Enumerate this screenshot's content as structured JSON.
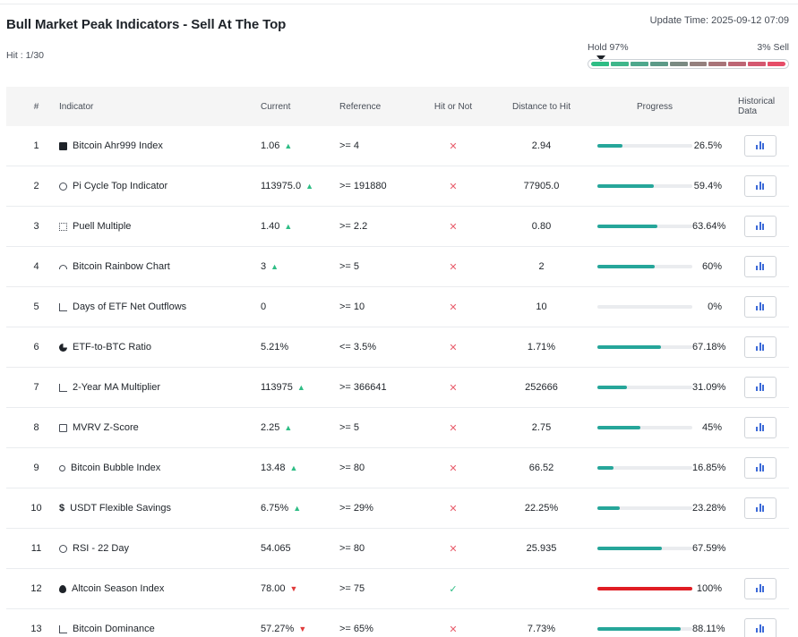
{
  "header": {
    "title": "Bull Market Peak Indicators - Sell At The Top",
    "update_time": "Update Time: 2025-09-12 07:09",
    "hit_count": "Hit : 1/30"
  },
  "meter": {
    "hold_label": "Hold 97%",
    "sell_label": "3% Sell",
    "hold_percent": 97,
    "segments": [
      "#2ebd85",
      "#3fb68b",
      "#4ea88d",
      "#5c9a88",
      "#7a8a82",
      "#94807e",
      "#a87479",
      "#bd6675",
      "#d45870",
      "#e64d68"
    ]
  },
  "colors": {
    "progress_fill": "#26a69a",
    "progress_hit": "#e01d24",
    "arrow_up": "#2ebd85",
    "arrow_down": "#e03b3b",
    "chart_icon": "#3c6ad8"
  },
  "table": {
    "columns": {
      "num": "#",
      "indicator": "Indicator",
      "current": "Current",
      "reference": "Reference",
      "hit": "Hit or Not",
      "distance": "Distance to Hit",
      "progress": "Progress",
      "history": "Historical Data"
    },
    "rows": [
      {
        "num": "1",
        "icon": "box-icon",
        "indicator": "Bitcoin Ahr999 Index",
        "current": "1.06",
        "trend": "up",
        "reference": ">= 4",
        "hit": false,
        "distance": "2.94",
        "progress_label": "26.5%",
        "progress": 26.5,
        "history": true
      },
      {
        "num": "2",
        "icon": "ring-icon",
        "indicator": "Pi Cycle Top Indicator",
        "current": "113975.0",
        "trend": "up",
        "reference": ">= 191880",
        "hit": false,
        "distance": "77905.0",
        "progress_label": "59.4%",
        "progress": 59.4,
        "history": true
      },
      {
        "num": "3",
        "icon": "dots-icon",
        "indicator": "Puell Multiple",
        "current": "1.40",
        "trend": "up",
        "reference": ">= 2.2",
        "hit": false,
        "distance": "0.80",
        "progress_label": "63.64%",
        "progress": 63.64,
        "history": true
      },
      {
        "num": "4",
        "icon": "rainbow-icon",
        "indicator": "Bitcoin Rainbow Chart",
        "current": "3",
        "trend": "up",
        "reference": ">= 5",
        "hit": false,
        "distance": "2",
        "progress_label": "60%",
        "progress": 60,
        "history": true
      },
      {
        "num": "5",
        "icon": "bar-chart-icon",
        "indicator": "Days of ETF Net Outflows",
        "current": "0",
        "trend": "",
        "reference": ">= 10",
        "hit": false,
        "distance": "10",
        "progress_label": "0%",
        "progress": 0,
        "history": true
      },
      {
        "num": "6",
        "icon": "pie-chart-icon",
        "indicator": "ETF-to-BTC Ratio",
        "current": "5.21%",
        "trend": "",
        "reference": "<= 3.5%",
        "hit": false,
        "distance": "1.71%",
        "progress_label": "67.18%",
        "progress": 67.18,
        "history": true
      },
      {
        "num": "7",
        "icon": "line-chart-icon",
        "indicator": "2-Year MA Multiplier",
        "current": "113975",
        "trend": "up",
        "reference": ">= 366641",
        "hit": false,
        "distance": "252666",
        "progress_label": "31.09%",
        "progress": 31.09,
        "history": true
      },
      {
        "num": "8",
        "icon": "clipboard-icon",
        "indicator": "MVRV Z-Score",
        "current": "2.25",
        "trend": "up",
        "reference": ">= 5",
        "hit": false,
        "distance": "2.75",
        "progress_label": "45%",
        "progress": 45,
        "history": true
      },
      {
        "num": "9",
        "icon": "bubble-icon",
        "indicator": "Bitcoin Bubble Index",
        "current": "13.48",
        "trend": "up",
        "reference": ">= 80",
        "hit": false,
        "distance": "66.52",
        "progress_label": "16.85%",
        "progress": 16.85,
        "history": true
      },
      {
        "num": "10",
        "icon": "dollar-icon",
        "indicator": "USDT Flexible Savings",
        "current": "6.75%",
        "trend": "up",
        "reference": ">= 29%",
        "hit": false,
        "distance": "22.25%",
        "progress_label": "23.28%",
        "progress": 23.28,
        "history": true
      },
      {
        "num": "11",
        "icon": "clock-icon",
        "indicator": "RSI - 22 Day",
        "current": "54.065",
        "trend": "",
        "reference": ">= 80",
        "hit": false,
        "distance": "25.935",
        "progress_label": "67.59%",
        "progress": 67.59,
        "history": false
      },
      {
        "num": "12",
        "icon": "flame-icon",
        "indicator": "Altcoin Season Index",
        "current": "78.00",
        "trend": "down",
        "reference": ">= 75",
        "hit": true,
        "distance": "",
        "progress_label": "100%",
        "progress": 100,
        "history": true
      },
      {
        "num": "13",
        "icon": "dominance-icon",
        "indicator": "Bitcoin Dominance",
        "current": "57.27%",
        "trend": "down",
        "reference": ">= 65%",
        "hit": false,
        "distance": "7.73%",
        "progress_label": "88.11%",
        "progress": 88.11,
        "history": true
      }
    ]
  }
}
